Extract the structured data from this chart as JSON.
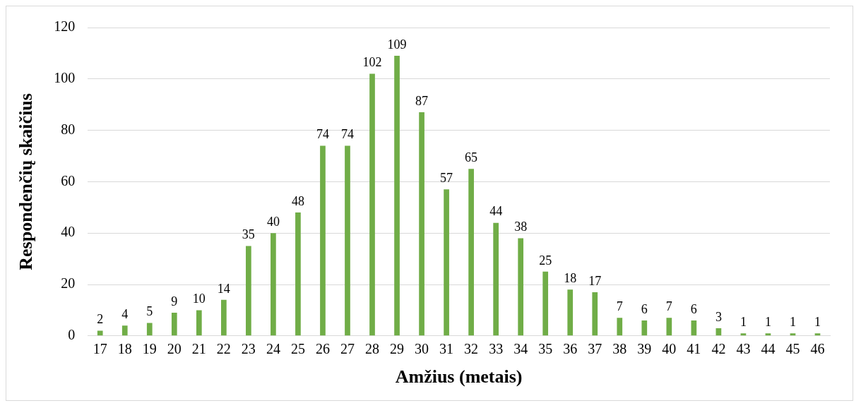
{
  "chart_data": {
    "type": "bar",
    "xlabel": "Amžius (metais)",
    "ylabel": "Respondenčių skaičius",
    "categories": [
      "17",
      "18",
      "19",
      "20",
      "21",
      "22",
      "23",
      "24",
      "25",
      "26",
      "27",
      "28",
      "29",
      "30",
      "31",
      "32",
      "33",
      "34",
      "35",
      "36",
      "37",
      "38",
      "39",
      "40",
      "41",
      "42",
      "43",
      "44",
      "45",
      "46"
    ],
    "values": [
      2,
      4,
      5,
      9,
      10,
      14,
      35,
      40,
      48,
      74,
      74,
      102,
      109,
      87,
      57,
      65,
      44,
      38,
      25,
      18,
      17,
      7,
      6,
      7,
      6,
      3,
      1,
      1,
      1,
      1
    ],
    "color": "#70ad47",
    "ylim": [
      0,
      120
    ],
    "yticks": [
      0,
      20,
      40,
      60,
      80,
      100,
      120
    ],
    "grid": "y",
    "data_labels": true,
    "legend": false
  }
}
